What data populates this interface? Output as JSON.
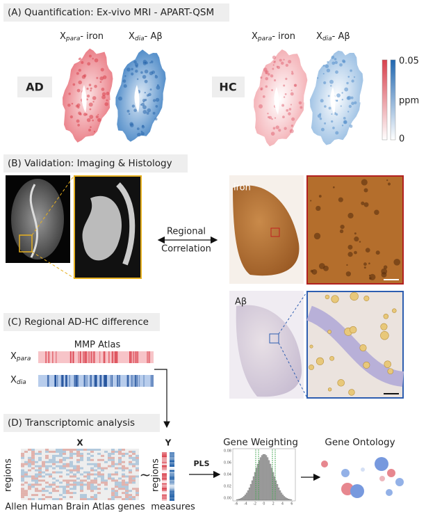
{
  "panel_a": {
    "title": "(A) Quantification: Ex-vivo MRI - APART-QSM",
    "para_label": {
      "symbol": "X",
      "subscript": "para",
      "rest": "- iron"
    },
    "dia_label": {
      "symbol": "X",
      "subscript": "dia",
      "rest": "- Aβ"
    },
    "groups": [
      "AD",
      "HC"
    ],
    "colorbar": {
      "max": "0.05",
      "unit": "ppm",
      "min": "0"
    }
  },
  "panel_b": {
    "title": "(B) Validation: Imaging & Histology",
    "link": [
      "Regional",
      "Correlation"
    ],
    "stains": [
      "iron",
      "Aβ"
    ]
  },
  "panel_c": {
    "title": "(C) Regional AD-HC difference",
    "atlas": "MMP Atlas",
    "rows": [
      {
        "symbol": "X",
        "subscript": "para"
      },
      {
        "symbol": "X",
        "subscript": "dia"
      }
    ]
  },
  "panel_d": {
    "title": "(D) Transcriptomic analysis",
    "x_label": "X",
    "x_rows": "regions",
    "x_cols": "Allen Human Brain Atlas genes",
    "relation": "~",
    "y_label": "Y",
    "y_rows": "regions",
    "y_cols": "measures",
    "method": "PLS",
    "weighting": {
      "title": "Gene Weighting",
      "yticks": [
        "0.08",
        "0.06",
        "0.04",
        "0.02",
        "0.00"
      ],
      "xticks": [
        "-6",
        "-4",
        "-2",
        "0",
        "2",
        "4",
        "6"
      ]
    },
    "ontology": "Gene Ontology"
  }
}
